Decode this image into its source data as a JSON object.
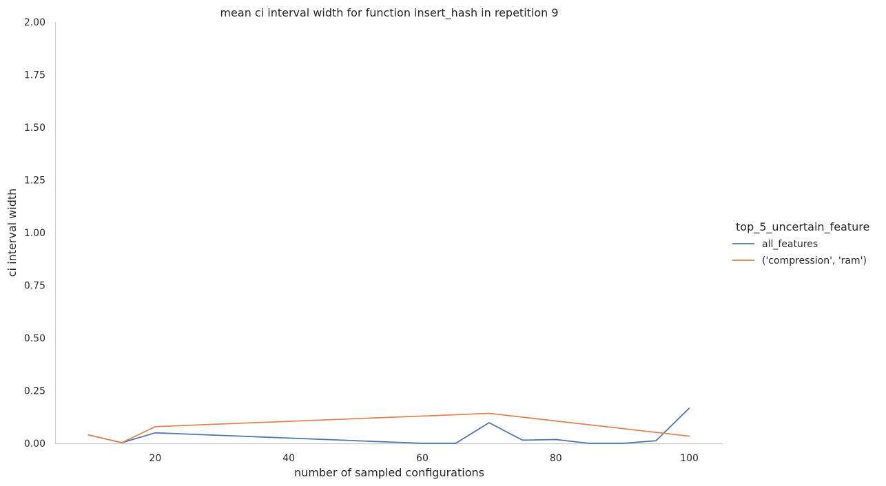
{
  "chart_data": {
    "type": "line",
    "title": "mean ci interval width for function insert_hash in repetition 9",
    "xlabel": "number of sampled configurations",
    "ylabel": "ci interval width",
    "xlim": [
      5,
      105
    ],
    "ylim": [
      0,
      2
    ],
    "xticks": [
      "20",
      "40",
      "60",
      "80",
      "100"
    ],
    "yticks": [
      "0.00",
      "0.25",
      "0.50",
      "0.75",
      "1.00",
      "1.25",
      "1.50",
      "1.75",
      "2.00"
    ],
    "grid": false,
    "legend": {
      "title": "top_5_uncertain_feature",
      "placement": "right"
    },
    "series": [
      {
        "name": "all_features",
        "color": "#4c72b0",
        "x": [
          10,
          15,
          20,
          60,
          65,
          70,
          75,
          80,
          85,
          90,
          95,
          100
        ],
        "values": [
          0.04,
          0.003,
          0.05,
          0.0,
          0.0,
          0.098,
          0.015,
          0.018,
          0.0,
          0.0,
          0.012,
          0.167
        ]
      },
      {
        "name": "('compression', 'ram')",
        "color": "#dd8452",
        "x": [
          10,
          15,
          20,
          70,
          100
        ],
        "values": [
          0.04,
          0.003,
          0.079,
          0.142,
          0.034
        ]
      }
    ]
  }
}
